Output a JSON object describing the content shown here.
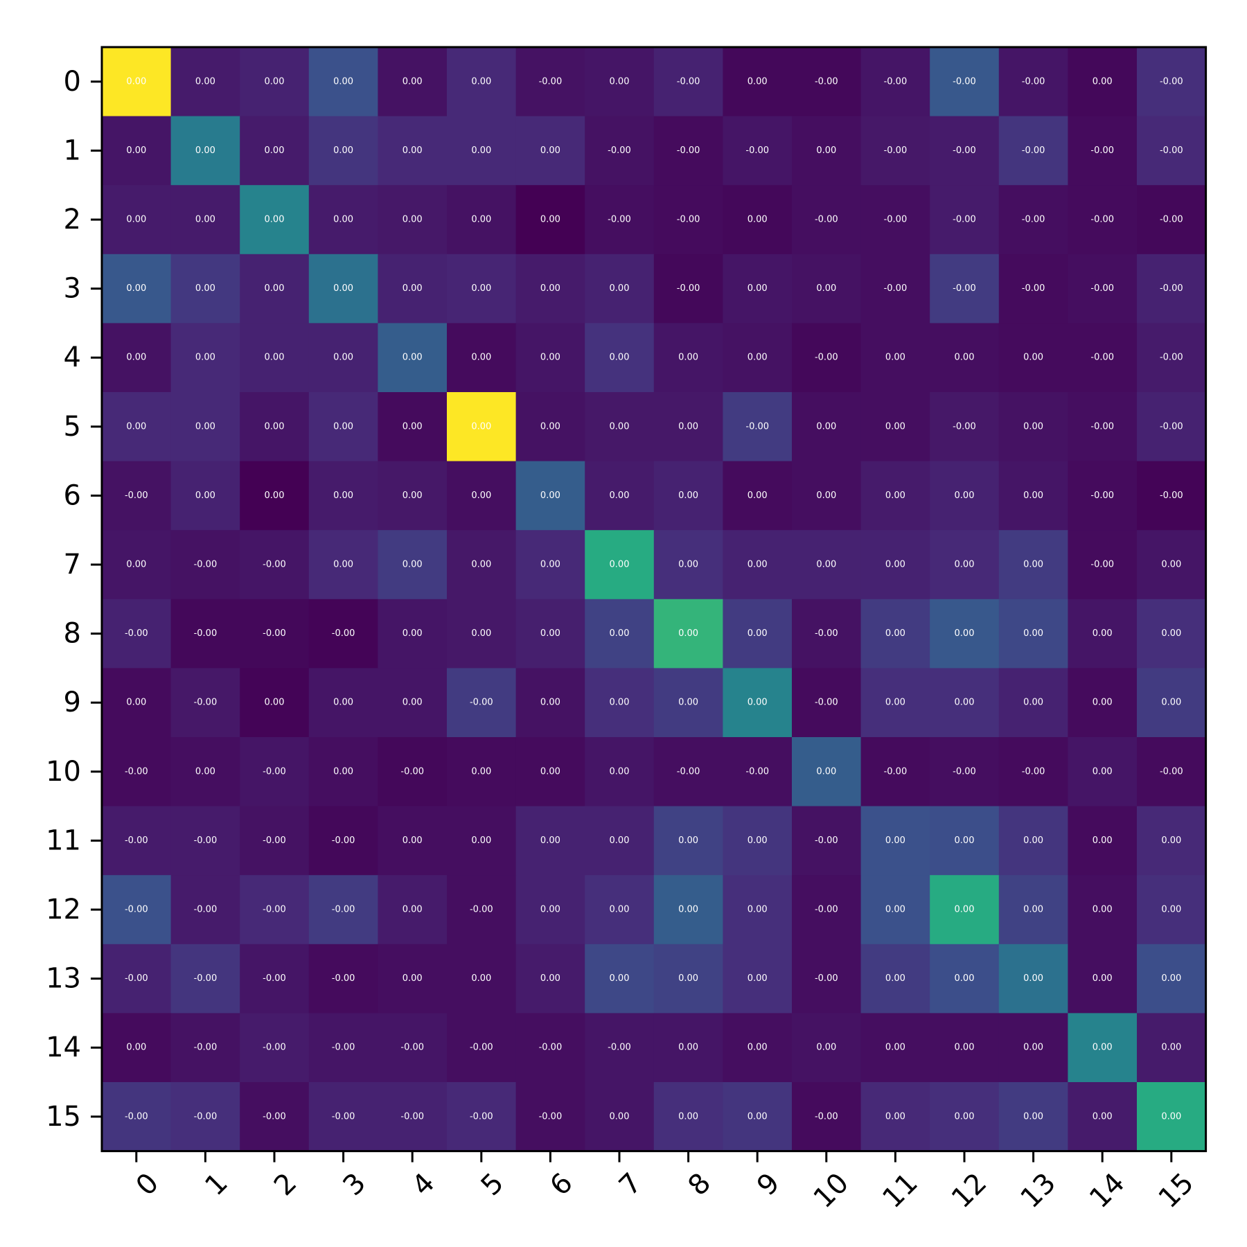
{
  "chart_data": {
    "type": "heatmap",
    "colormap": "viridis",
    "cell_text_color": "#ffffff",
    "x_tick_rotation_deg": 45,
    "title": "",
    "xlabel": "",
    "ylabel": "",
    "x_ticks": [
      "0",
      "1",
      "2",
      "3",
      "4",
      "5",
      "6",
      "7",
      "8",
      "9",
      "10",
      "11",
      "12",
      "13",
      "14",
      "15"
    ],
    "y_ticks": [
      "0",
      "1",
      "2",
      "3",
      "4",
      "5",
      "6",
      "7",
      "8",
      "9",
      "10",
      "11",
      "12",
      "13",
      "14",
      "15"
    ],
    "labels": [
      [
        "0.00",
        "0.00",
        "0.00",
        "0.00",
        "0.00",
        "0.00",
        "-0.00",
        "0.00",
        "-0.00",
        "0.00",
        "-0.00",
        "-0.00",
        "-0.00",
        "-0.00",
        "0.00",
        "-0.00"
      ],
      [
        "0.00",
        "0.00",
        "0.00",
        "0.00",
        "0.00",
        "0.00",
        "0.00",
        "-0.00",
        "-0.00",
        "-0.00",
        "0.00",
        "-0.00",
        "-0.00",
        "-0.00",
        "-0.00",
        "-0.00"
      ],
      [
        "0.00",
        "0.00",
        "0.00",
        "0.00",
        "0.00",
        "0.00",
        "0.00",
        "-0.00",
        "-0.00",
        "0.00",
        "-0.00",
        "-0.00",
        "-0.00",
        "-0.00",
        "-0.00",
        "-0.00"
      ],
      [
        "0.00",
        "0.00",
        "0.00",
        "0.00",
        "0.00",
        "0.00",
        "0.00",
        "0.00",
        "-0.00",
        "0.00",
        "0.00",
        "-0.00",
        "-0.00",
        "-0.00",
        "-0.00",
        "-0.00"
      ],
      [
        "0.00",
        "0.00",
        "0.00",
        "0.00",
        "0.00",
        "0.00",
        "0.00",
        "0.00",
        "0.00",
        "0.00",
        "-0.00",
        "0.00",
        "0.00",
        "0.00",
        "-0.00",
        "-0.00"
      ],
      [
        "0.00",
        "0.00",
        "0.00",
        "0.00",
        "0.00",
        "0.00",
        "0.00",
        "0.00",
        "0.00",
        "-0.00",
        "0.00",
        "0.00",
        "-0.00",
        "0.00",
        "-0.00",
        "-0.00"
      ],
      [
        "-0.00",
        "0.00",
        "0.00",
        "0.00",
        "0.00",
        "0.00",
        "0.00",
        "0.00",
        "0.00",
        "0.00",
        "0.00",
        "0.00",
        "0.00",
        "0.00",
        "-0.00",
        "-0.00"
      ],
      [
        "0.00",
        "-0.00",
        "-0.00",
        "0.00",
        "0.00",
        "0.00",
        "0.00",
        "0.00",
        "0.00",
        "0.00",
        "0.00",
        "0.00",
        "0.00",
        "0.00",
        "-0.00",
        "0.00"
      ],
      [
        "-0.00",
        "-0.00",
        "-0.00",
        "-0.00",
        "0.00",
        "0.00",
        "0.00",
        "0.00",
        "0.00",
        "0.00",
        "-0.00",
        "0.00",
        "0.00",
        "0.00",
        "0.00",
        "0.00"
      ],
      [
        "0.00",
        "-0.00",
        "0.00",
        "0.00",
        "0.00",
        "-0.00",
        "0.00",
        "0.00",
        "0.00",
        "0.00",
        "-0.00",
        "0.00",
        "0.00",
        "0.00",
        "0.00",
        "0.00"
      ],
      [
        "-0.00",
        "0.00",
        "-0.00",
        "0.00",
        "-0.00",
        "0.00",
        "0.00",
        "0.00",
        "-0.00",
        "-0.00",
        "0.00",
        "-0.00",
        "-0.00",
        "-0.00",
        "0.00",
        "-0.00"
      ],
      [
        "-0.00",
        "-0.00",
        "-0.00",
        "-0.00",
        "0.00",
        "0.00",
        "0.00",
        "0.00",
        "0.00",
        "0.00",
        "-0.00",
        "0.00",
        "0.00",
        "0.00",
        "0.00",
        "0.00"
      ],
      [
        "-0.00",
        "-0.00",
        "-0.00",
        "-0.00",
        "0.00",
        "-0.00",
        "0.00",
        "0.00",
        "0.00",
        "0.00",
        "-0.00",
        "0.00",
        "0.00",
        "0.00",
        "0.00",
        "0.00"
      ],
      [
        "-0.00",
        "-0.00",
        "-0.00",
        "-0.00",
        "0.00",
        "0.00",
        "0.00",
        "0.00",
        "0.00",
        "0.00",
        "-0.00",
        "0.00",
        "0.00",
        "0.00",
        "0.00",
        "0.00"
      ],
      [
        "0.00",
        "-0.00",
        "-0.00",
        "-0.00",
        "-0.00",
        "-0.00",
        "-0.00",
        "-0.00",
        "0.00",
        "0.00",
        "0.00",
        "0.00",
        "0.00",
        "0.00",
        "0.00",
        "0.00"
      ],
      [
        "-0.00",
        "-0.00",
        "-0.00",
        "-0.00",
        "-0.00",
        "-0.00",
        "-0.00",
        "0.00",
        "0.00",
        "0.00",
        "-0.00",
        "0.00",
        "0.00",
        "0.00",
        "0.00",
        "0.00"
      ]
    ],
    "intensity": [
      [
        1.0,
        0.08,
        0.1,
        0.25,
        0.05,
        0.12,
        0.05,
        0.06,
        0.1,
        0.02,
        0.02,
        0.06,
        0.28,
        0.06,
        0.02,
        0.14
      ],
      [
        0.06,
        0.42,
        0.08,
        0.16,
        0.12,
        0.12,
        0.12,
        0.05,
        0.03,
        0.06,
        0.04,
        0.07,
        0.08,
        0.16,
        0.03,
        0.12
      ],
      [
        0.08,
        0.08,
        0.45,
        0.08,
        0.07,
        0.05,
        0.0,
        0.04,
        0.03,
        0.02,
        0.04,
        0.04,
        0.08,
        0.04,
        0.03,
        0.02
      ],
      [
        0.28,
        0.17,
        0.1,
        0.38,
        0.1,
        0.11,
        0.08,
        0.1,
        0.02,
        0.06,
        0.05,
        0.04,
        0.18,
        0.03,
        0.04,
        0.1
      ],
      [
        0.05,
        0.12,
        0.1,
        0.1,
        0.3,
        0.03,
        0.06,
        0.15,
        0.06,
        0.05,
        0.02,
        0.04,
        0.04,
        0.03,
        0.03,
        0.08
      ],
      [
        0.12,
        0.12,
        0.06,
        0.12,
        0.03,
        1.0,
        0.05,
        0.07,
        0.07,
        0.18,
        0.04,
        0.04,
        0.07,
        0.05,
        0.04,
        0.1
      ],
      [
        0.05,
        0.1,
        0.0,
        0.08,
        0.07,
        0.04,
        0.3,
        0.08,
        0.1,
        0.03,
        0.04,
        0.08,
        0.1,
        0.06,
        0.03,
        0.01
      ],
      [
        0.06,
        0.05,
        0.06,
        0.12,
        0.18,
        0.07,
        0.12,
        0.62,
        0.14,
        0.1,
        0.1,
        0.1,
        0.12,
        0.18,
        0.03,
        0.06
      ],
      [
        0.1,
        0.02,
        0.02,
        0.01,
        0.06,
        0.07,
        0.09,
        0.2,
        0.66,
        0.18,
        0.05,
        0.18,
        0.28,
        0.22,
        0.06,
        0.14
      ],
      [
        0.03,
        0.07,
        0.01,
        0.06,
        0.06,
        0.18,
        0.05,
        0.14,
        0.18,
        0.45,
        0.03,
        0.14,
        0.14,
        0.1,
        0.03,
        0.18
      ],
      [
        0.03,
        0.04,
        0.06,
        0.04,
        0.02,
        0.03,
        0.03,
        0.06,
        0.04,
        0.04,
        0.3,
        0.03,
        0.04,
        0.03,
        0.06,
        0.03
      ],
      [
        0.08,
        0.08,
        0.05,
        0.02,
        0.04,
        0.04,
        0.1,
        0.1,
        0.2,
        0.16,
        0.05,
        0.25,
        0.24,
        0.16,
        0.03,
        0.12
      ],
      [
        0.25,
        0.08,
        0.12,
        0.18,
        0.08,
        0.04,
        0.1,
        0.14,
        0.3,
        0.14,
        0.04,
        0.25,
        0.62,
        0.2,
        0.04,
        0.14
      ],
      [
        0.1,
        0.16,
        0.06,
        0.03,
        0.04,
        0.04,
        0.08,
        0.22,
        0.2,
        0.14,
        0.04,
        0.18,
        0.24,
        0.38,
        0.04,
        0.24
      ],
      [
        0.03,
        0.05,
        0.08,
        0.06,
        0.06,
        0.04,
        0.04,
        0.06,
        0.06,
        0.04,
        0.05,
        0.04,
        0.04,
        0.04,
        0.45,
        0.08
      ],
      [
        0.16,
        0.14,
        0.04,
        0.1,
        0.1,
        0.12,
        0.04,
        0.06,
        0.14,
        0.16,
        0.03,
        0.12,
        0.14,
        0.18,
        0.08,
        0.62
      ]
    ]
  }
}
